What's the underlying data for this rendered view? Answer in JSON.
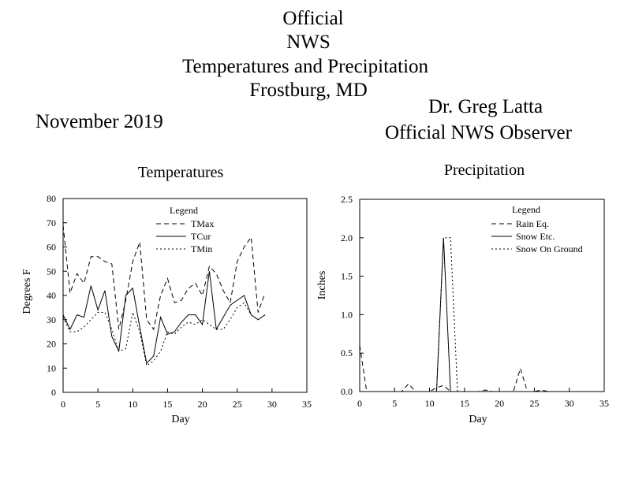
{
  "header": {
    "title_lines": [
      "Official",
      "NWS",
      "Temperatures and Precipitation",
      "Frostburg, MD"
    ],
    "month": "November 2019",
    "observer_name": "Dr. Greg Latta",
    "observer_title": "Official NWS Observer"
  },
  "chart_data": [
    {
      "type": "line",
      "title": "Temperatures",
      "xlabel": "Day",
      "ylabel": "Degrees F",
      "xlim": [
        0,
        35
      ],
      "ylim": [
        0,
        80
      ],
      "xticks": [
        0,
        5,
        10,
        15,
        20,
        25,
        30,
        35
      ],
      "yticks": [
        0,
        10,
        20,
        30,
        40,
        50,
        60,
        70,
        80
      ],
      "legend_title": "Legend",
      "legend_position": "top-center",
      "grid": false,
      "x": [
        0,
        1,
        2,
        3,
        4,
        5,
        6,
        7,
        8,
        9,
        10,
        11,
        12,
        13,
        14,
        15,
        16,
        17,
        18,
        19,
        20,
        21,
        22,
        23,
        24,
        25,
        26,
        27,
        28,
        29
      ],
      "series": [
        {
          "name": "TMax",
          "style": "dashed",
          "values": [
            69,
            41,
            49,
            45,
            56,
            56,
            54,
            53,
            26,
            38,
            54,
            62,
            30,
            26,
            40,
            47,
            37,
            38,
            43,
            45,
            40,
            52,
            49,
            42,
            37,
            54,
            60,
            64,
            33,
            41
          ]
        },
        {
          "name": "TCur",
          "style": "solid",
          "values": [
            32,
            26,
            32,
            31,
            44,
            34,
            42,
            23,
            17,
            40,
            43,
            27,
            12,
            15,
            31,
            24,
            25,
            29,
            32,
            32,
            28,
            50,
            26,
            31,
            36,
            38,
            40,
            32,
            30,
            32
          ]
        },
        {
          "name": "TMin",
          "style": "dotted",
          "values": [
            31,
            25,
            25,
            27,
            30,
            33,
            33,
            26,
            17,
            18,
            33,
            25,
            11,
            13,
            17,
            25,
            24,
            27,
            29,
            28,
            30,
            28,
            26,
            26,
            30,
            35,
            37,
            32,
            30,
            32
          ]
        }
      ]
    },
    {
      "type": "line",
      "title": "Precipitation",
      "xlabel": "Day",
      "ylabel": "Inches",
      "xlim": [
        0,
        35
      ],
      "ylim": [
        0,
        2.5
      ],
      "xticks": [
        0,
        5,
        10,
        15,
        20,
        25,
        30,
        35
      ],
      "yticks": [
        "0.0",
        "0.5",
        "1.0",
        "1.5",
        "2.0",
        "2.5"
      ],
      "legend_title": "Legend",
      "legend_position": "top-right",
      "grid": false,
      "x": [
        0,
        1,
        2,
        3,
        4,
        5,
        6,
        7,
        8,
        9,
        10,
        11,
        12,
        13,
        14,
        15,
        16,
        17,
        18,
        19,
        20,
        21,
        22,
        23,
        24,
        25,
        26,
        27,
        28,
        29
      ],
      "series": [
        {
          "name": "Rain Eq.",
          "style": "dashed",
          "values": [
            0.6,
            0,
            0,
            0,
            0,
            0,
            0,
            0.1,
            0,
            0,
            0,
            0.05,
            0.08,
            0,
            0,
            0,
            0,
            0,
            0.02,
            0,
            0,
            0,
            0,
            0.3,
            0,
            0,
            0.02,
            0,
            0,
            0
          ]
        },
        {
          "name": "Snow Etc.",
          "style": "solid",
          "values": [
            0,
            0,
            0,
            0,
            0,
            0,
            0,
            0,
            0,
            0,
            0,
            0,
            2.0,
            0,
            0,
            0,
            0,
            0,
            0,
            0,
            0,
            0,
            0,
            0,
            0,
            0,
            0,
            0,
            0,
            0
          ]
        },
        {
          "name": "Snow On Ground",
          "style": "dotted",
          "values": [
            0,
            0,
            0,
            0,
            0,
            0,
            0,
            0,
            0,
            0,
            0,
            0,
            2.0,
            2.0,
            0,
            0,
            0,
            0,
            0,
            0,
            0,
            0,
            0,
            0,
            0,
            0,
            0,
            0,
            0,
            0
          ]
        }
      ]
    }
  ]
}
